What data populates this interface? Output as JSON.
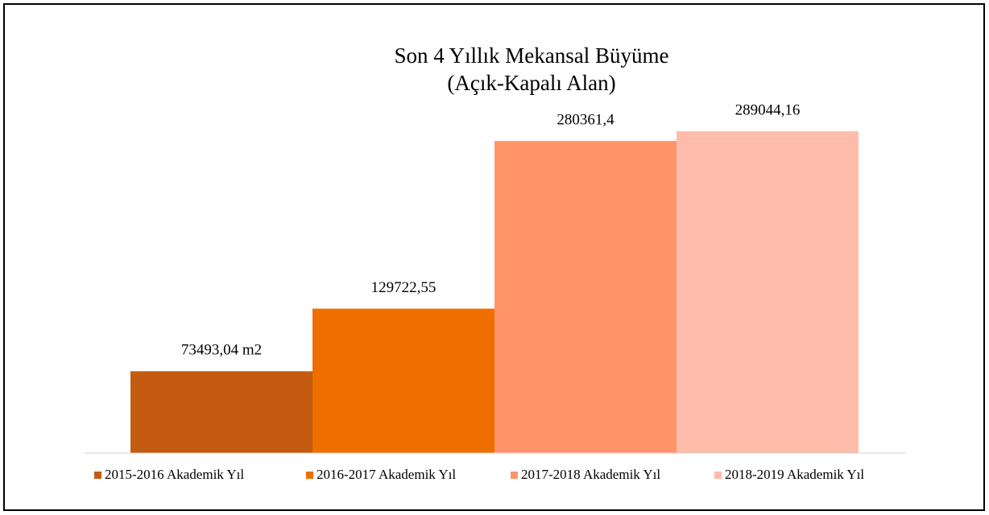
{
  "chart_data": {
    "type": "bar",
    "title": [
      "Son 4 Yıllık Mekansal Büyüme",
      "(Açık-Kapalı Alan)"
    ],
    "series": [
      {
        "name": "2015-2016 Akademik Yıl",
        "color": "#c55a11",
        "values": [
          73493.04
        ],
        "value_labels": [
          "73493,04 m2"
        ]
      },
      {
        "name": "2016-2017 Akademik Yıl",
        "color": "#ee6f00",
        "values": [
          129722.55
        ],
        "value_labels": [
          "129722,55"
        ]
      },
      {
        "name": "2017-2018 Akademik Yıl",
        "color": "#ff9468",
        "values": [
          280361.4
        ],
        "value_labels": [
          "280361,4"
        ]
      },
      {
        "name": "2018-2019 Akademik Yıl",
        "color": "#ffbcaa",
        "values": [
          289044.16
        ],
        "value_labels": [
          "289044,16"
        ]
      }
    ],
    "ylim": [
      0,
      300000
    ],
    "legend": "bottom"
  }
}
